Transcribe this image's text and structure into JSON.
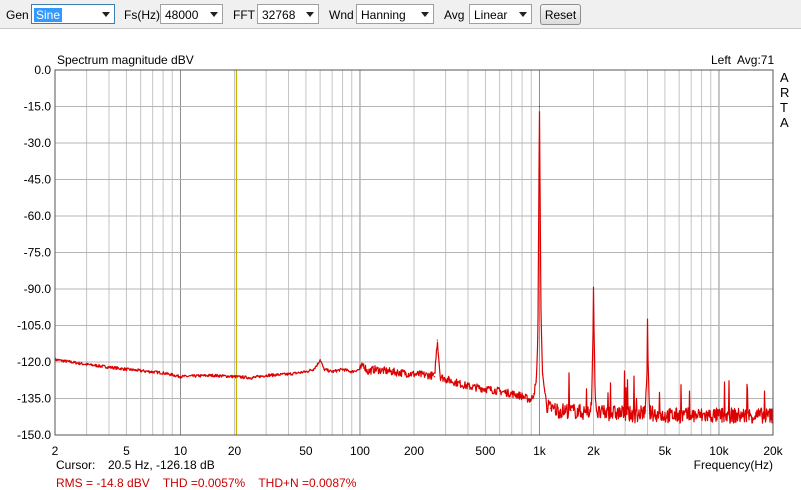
{
  "toolbar": {
    "gen_label": "Gen",
    "gen_value": "Sine",
    "fs_label": "Fs(Hz)",
    "fs_value": "48000",
    "fft_label": "FFT",
    "fft_value": "32768",
    "wnd_label": "Wnd",
    "wnd_value": "Hanning",
    "avg_label": "Avg",
    "avg_value": "Linear",
    "reset_label": "Reset"
  },
  "plot": {
    "title": "Spectrum magnitude dBV",
    "channel": "Left",
    "avg_info": "Avg:71",
    "brand_letters": [
      "A",
      "R",
      "T",
      "A"
    ],
    "cursor_label": "Cursor:",
    "cursor_value": "20.5 Hz, -126.18 dB",
    "stats": "RMS = -14.8 dBV    THD =0.0057%    THD+N =0.0087%",
    "cursor_freq_hz": 20.5
  },
  "chart_data": {
    "type": "line",
    "xlabel": "Frequency(Hz)",
    "ylabel": "",
    "title": "Spectrum magnitude dBV",
    "x_scale": "log",
    "xlim": [
      2,
      20000
    ],
    "ylim": [
      -150,
      0
    ],
    "x_ticks": [
      {
        "v": 2,
        "label": "2"
      },
      {
        "v": 5,
        "label": "5"
      },
      {
        "v": 10,
        "label": "10"
      },
      {
        "v": 20,
        "label": "20"
      },
      {
        "v": 50,
        "label": "50"
      },
      {
        "v": 100,
        "label": "100"
      },
      {
        "v": 200,
        "label": "200"
      },
      {
        "v": 500,
        "label": "500"
      },
      {
        "v": 1000,
        "label": "1k"
      },
      {
        "v": 2000,
        "label": "2k"
      },
      {
        "v": 5000,
        "label": "5k"
      },
      {
        "v": 10000,
        "label": "10k"
      },
      {
        "v": 20000,
        "label": "20k"
      }
    ],
    "y_ticks": [
      {
        "v": 0,
        "label": "0.0"
      },
      {
        "v": -15,
        "label": "-15.0"
      },
      {
        "v": -30,
        "label": "-30.0"
      },
      {
        "v": -45,
        "label": "-45.0"
      },
      {
        "v": -60,
        "label": "-60.0"
      },
      {
        "v": -75,
        "label": "-75.0"
      },
      {
        "v": -90,
        "label": "-90.0"
      },
      {
        "v": -105,
        "label": "-105.0"
      },
      {
        "v": -120,
        "label": "-120.0"
      },
      {
        "v": -135,
        "label": "-135.0"
      },
      {
        "v": -150,
        "label": "-150.0"
      }
    ],
    "grid": true,
    "series": [
      {
        "color": "#dd0000",
        "x": [
          2,
          3,
          5,
          8,
          10,
          15,
          20,
          25,
          30,
          40,
          50,
          55,
          58,
          60,
          63,
          70,
          80,
          90,
          100,
          105,
          110,
          120,
          150,
          200,
          250,
          260,
          270,
          280,
          300,
          400,
          500,
          600,
          700,
          800,
          850,
          900,
          930,
          960,
          980,
          990,
          1000,
          1010,
          1020,
          1040,
          1070,
          1100,
          1150,
          1300,
          1500,
          1900,
          1950,
          2000,
          2050,
          2100,
          3000,
          3500,
          3900,
          4000,
          4100,
          5000,
          6000,
          7000,
          8000,
          10000,
          15000,
          20000
        ],
        "y": [
          -119,
          -121,
          -123,
          -124.5,
          -126,
          -125.5,
          -126,
          -126.5,
          -125.5,
          -125,
          -124,
          -123,
          -121,
          -119,
          -123,
          -124,
          -123,
          -124,
          -123,
          -121,
          -124,
          -123,
          -124,
          -125,
          -125.5,
          -126,
          -111,
          -126,
          -127,
          -130,
          -131,
          -132,
          -133,
          -134,
          -135,
          -135.5,
          -133,
          -128,
          -110,
          -60,
          -15,
          -60,
          -100,
          -125,
          -132,
          -138,
          -139,
          -140,
          -140,
          -141,
          -135,
          -100,
          -135,
          -141,
          -141,
          -142,
          -140,
          -115,
          -141,
          -142,
          -142,
          -142,
          -142,
          -142,
          -142,
          -142
        ]
      }
    ]
  },
  "colors": {
    "trace": "#dd0000",
    "cursor_line": "#c8b400",
    "stats_text": "#cc0000",
    "grid": "#b4b4b4",
    "plot_border": "#555555"
  }
}
